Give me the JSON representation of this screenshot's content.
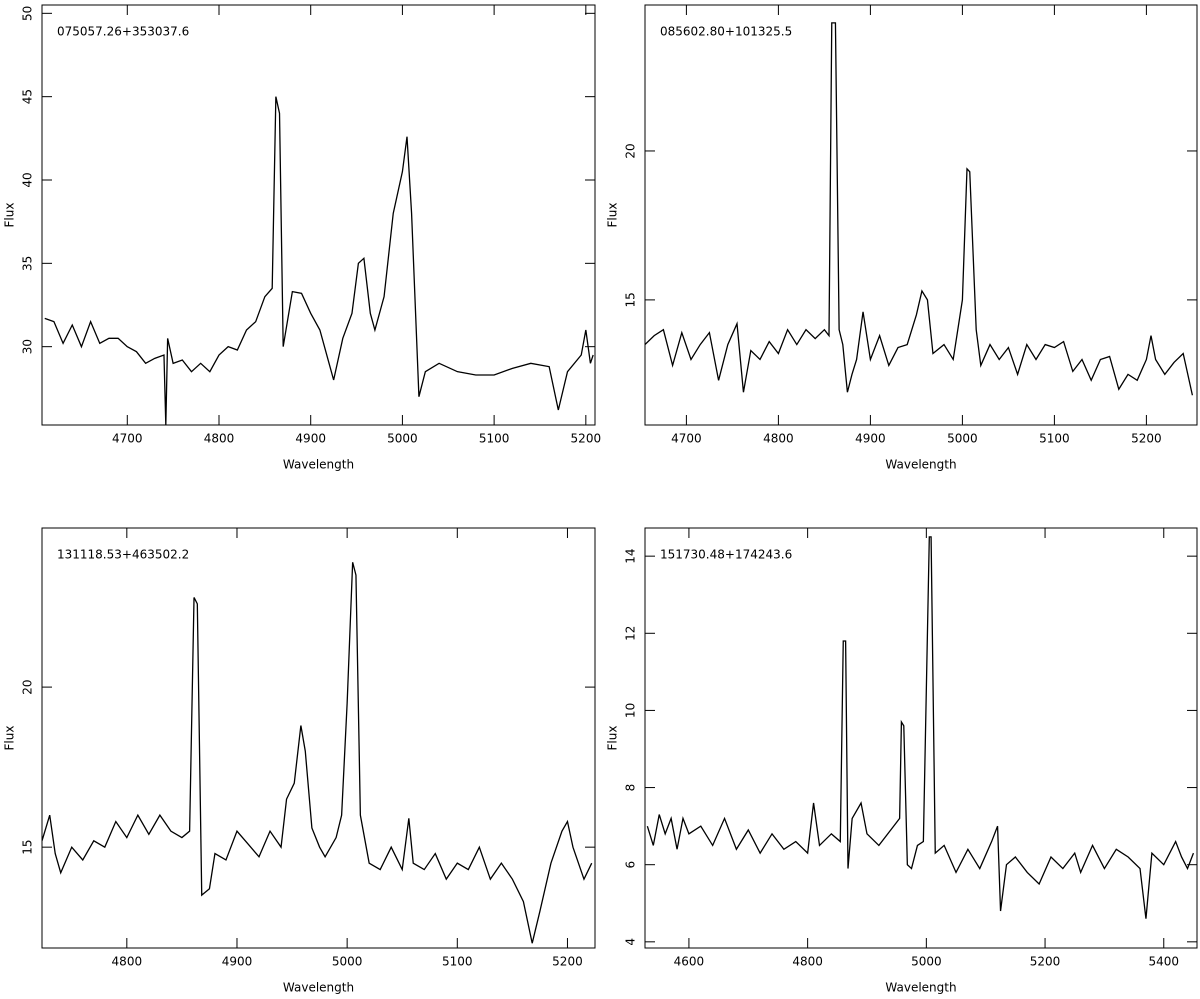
{
  "chart_data": [
    {
      "type": "line",
      "title": "075057.26+353037.6",
      "xlabel": "Wavelength",
      "ylabel": "Flux",
      "color": "#000000",
      "xlim": [
        4607,
        5210
      ],
      "ylim": [
        25.3,
        50.5
      ],
      "xticks": [
        4700,
        4800,
        4900,
        5000,
        5100,
        5200
      ],
      "yticks": [
        30,
        35,
        40,
        45,
        50
      ],
      "x": [
        4610,
        4620,
        4630,
        4640,
        4650,
        4660,
        4670,
        4680,
        4690,
        4700,
        4710,
        4720,
        4730,
        4740,
        4742,
        4744,
        4750,
        4760,
        4770,
        4780,
        4790,
        4800,
        4810,
        4820,
        4830,
        4840,
        4850,
        4858,
        4862,
        4866,
        4870,
        4880,
        4890,
        4900,
        4910,
        4920,
        4925,
        4935,
        4945,
        4952,
        4958,
        4965,
        4970,
        4980,
        4990,
        5000,
        5005,
        5010,
        5018,
        5025,
        5040,
        5060,
        5080,
        5100,
        5120,
        5140,
        5160,
        5170,
        5180,
        5195,
        5200,
        5205,
        5208
      ],
      "values": [
        31.7,
        31.5,
        30.2,
        31.3,
        30.0,
        31.5,
        30.2,
        30.5,
        30.5,
        30.0,
        29.7,
        29.0,
        29.3,
        29.5,
        25.3,
        30.5,
        29.0,
        29.2,
        28.5,
        29.0,
        28.5,
        29.5,
        30.0,
        29.8,
        31.0,
        31.5,
        33.0,
        33.5,
        45.0,
        44.0,
        30.0,
        33.3,
        33.2,
        32.0,
        31.0,
        29.0,
        28.0,
        30.5,
        32.0,
        35.0,
        35.3,
        32.0,
        31.0,
        33.0,
        38.0,
        40.5,
        42.6,
        38.0,
        27.0,
        28.5,
        29.0,
        28.5,
        28.3,
        28.3,
        28.7,
        29.0,
        28.8,
        26.2,
        28.5,
        29.5,
        31.0,
        29.0,
        29.5
      ]
    },
    {
      "type": "line",
      "title": "085602.80+101325.5",
      "xlabel": "Wavelength",
      "ylabel": "Flux",
      "color": "#000000",
      "xlim": [
        4655,
        5255
      ],
      "ylim": [
        10.8,
        24.9
      ],
      "xticks": [
        4700,
        4800,
        4900,
        5000,
        5100,
        5200
      ],
      "yticks": [
        15,
        20
      ],
      "x": [
        4655,
        4665,
        4675,
        4685,
        4695,
        4705,
        4715,
        4725,
        4735,
        4745,
        4755,
        4762,
        4770,
        4780,
        4790,
        4800,
        4810,
        4820,
        4830,
        4840,
        4850,
        4855,
        4858,
        4862,
        4866,
        4870,
        4875,
        4880,
        4885,
        4892,
        4900,
        4910,
        4920,
        4930,
        4940,
        4950,
        4956,
        4962,
        4968,
        4980,
        4990,
        5000,
        5005,
        5008,
        5015,
        5020,
        5030,
        5040,
        5050,
        5060,
        5070,
        5080,
        5090,
        5100,
        5110,
        5120,
        5130,
        5140,
        5150,
        5160,
        5170,
        5180,
        5190,
        5200,
        5205,
        5210,
        5220,
        5230,
        5240,
        5250
      ],
      "values": [
        13.5,
        13.8,
        14.0,
        12.8,
        13.9,
        13.0,
        13.5,
        13.9,
        12.3,
        13.5,
        14.2,
        11.9,
        13.3,
        13.0,
        13.6,
        13.2,
        14.0,
        13.5,
        14.0,
        13.7,
        14.0,
        13.8,
        24.3,
        24.3,
        14.0,
        13.5,
        11.9,
        12.5,
        13.0,
        14.6,
        13.0,
        13.8,
        12.8,
        13.4,
        13.5,
        14.5,
        15.3,
        15.0,
        13.2,
        13.5,
        13.0,
        15.0,
        19.4,
        19.3,
        14.0,
        12.8,
        13.5,
        13.0,
        13.4,
        12.5,
        13.5,
        13.0,
        13.5,
        13.4,
        13.6,
        12.6,
        13.0,
        12.3,
        13.0,
        13.1,
        12.0,
        12.5,
        12.3,
        13.0,
        13.8,
        13.0,
        12.5,
        12.9,
        13.2,
        11.8
      ]
    },
    {
      "type": "line",
      "title": "131118.53+463502.2",
      "xlabel": "Wavelength",
      "ylabel": "Flux",
      "color": "#000000",
      "xlim": [
        4723,
        5225
      ],
      "ylim": [
        11.85,
        24.97
      ],
      "xticks": [
        4800,
        4900,
        5000,
        5100,
        5200
      ],
      "yticks": [
        15,
        20
      ],
      "x": [
        4723,
        4730,
        4735,
        4740,
        4750,
        4760,
        4770,
        4780,
        4790,
        4800,
        4810,
        4820,
        4830,
        4840,
        4850,
        4857,
        4861,
        4864,
        4868,
        4875,
        4880,
        4890,
        4900,
        4910,
        4920,
        4930,
        4940,
        4945,
        4952,
        4958,
        4962,
        4968,
        4975,
        4980,
        4990,
        4995,
        5000,
        5005,
        5008,
        5012,
        5020,
        5030,
        5040,
        5050,
        5056,
        5060,
        5070,
        5080,
        5090,
        5100,
        5110,
        5120,
        5130,
        5140,
        5150,
        5160,
        5168,
        5175,
        5185,
        5195,
        5200,
        5205,
        5215,
        5222
      ],
      "values": [
        15.2,
        16.0,
        14.8,
        14.2,
        15.0,
        14.6,
        15.2,
        15.0,
        15.8,
        15.3,
        16.0,
        15.4,
        16.0,
        15.5,
        15.3,
        15.5,
        22.8,
        22.6,
        13.5,
        13.7,
        14.8,
        14.6,
        15.5,
        15.1,
        14.7,
        15.5,
        15.0,
        16.5,
        17.0,
        18.8,
        18.0,
        15.6,
        15.0,
        14.7,
        15.3,
        16.0,
        19.5,
        23.9,
        23.5,
        16.0,
        14.5,
        14.3,
        15.0,
        14.3,
        15.9,
        14.5,
        14.3,
        14.8,
        14.0,
        14.5,
        14.3,
        15.0,
        14.0,
        14.5,
        14.0,
        13.3,
        12.0,
        13.0,
        14.5,
        15.5,
        15.8,
        15.0,
        14.0,
        14.5
      ]
    },
    {
      "type": "line",
      "title": "151730.48+174243.6",
      "xlabel": "Wavelength",
      "ylabel": "Flux",
      "color": "#000000",
      "xlim": [
        4526,
        5456
      ],
      "ylim": [
        3.84,
        14.73
      ],
      "xticks": [
        4600,
        4800,
        5000,
        5200,
        5400
      ],
      "yticks": [
        4,
        6,
        8,
        10,
        12,
        14
      ],
      "x": [
        4530,
        4540,
        4550,
        4560,
        4570,
        4580,
        4590,
        4600,
        4620,
        4640,
        4660,
        4680,
        4700,
        4720,
        4740,
        4760,
        4780,
        4800,
        4810,
        4820,
        4840,
        4855,
        4860,
        4864,
        4868,
        4875,
        4890,
        4900,
        4920,
        4940,
        4955,
        4958,
        4962,
        4968,
        4975,
        4985,
        4995,
        5005,
        5008,
        5015,
        5030,
        5050,
        5070,
        5090,
        5110,
        5120,
        5125,
        5135,
        5150,
        5170,
        5190,
        5210,
        5230,
        5250,
        5260,
        5280,
        5300,
        5320,
        5340,
        5360,
        5370,
        5380,
        5400,
        5420,
        5430,
        5440,
        5450
      ],
      "values": [
        7.0,
        6.5,
        7.3,
        6.8,
        7.2,
        6.4,
        7.2,
        6.8,
        7.0,
        6.5,
        7.2,
        6.4,
        6.9,
        6.3,
        6.8,
        6.4,
        6.6,
        6.3,
        7.6,
        6.5,
        6.8,
        6.6,
        11.8,
        11.8,
        5.9,
        7.2,
        7.6,
        6.8,
        6.5,
        6.9,
        7.2,
        9.7,
        9.6,
        6.0,
        5.9,
        6.5,
        6.6,
        14.5,
        14.5,
        6.3,
        6.5,
        5.8,
        6.4,
        5.9,
        6.6,
        7.0,
        4.8,
        6.0,
        6.2,
        5.8,
        5.5,
        6.2,
        5.9,
        6.3,
        5.8,
        6.5,
        5.9,
        6.4,
        6.2,
        5.9,
        4.6,
        6.3,
        6.0,
        6.6,
        6.2,
        5.9,
        6.3
      ]
    }
  ]
}
